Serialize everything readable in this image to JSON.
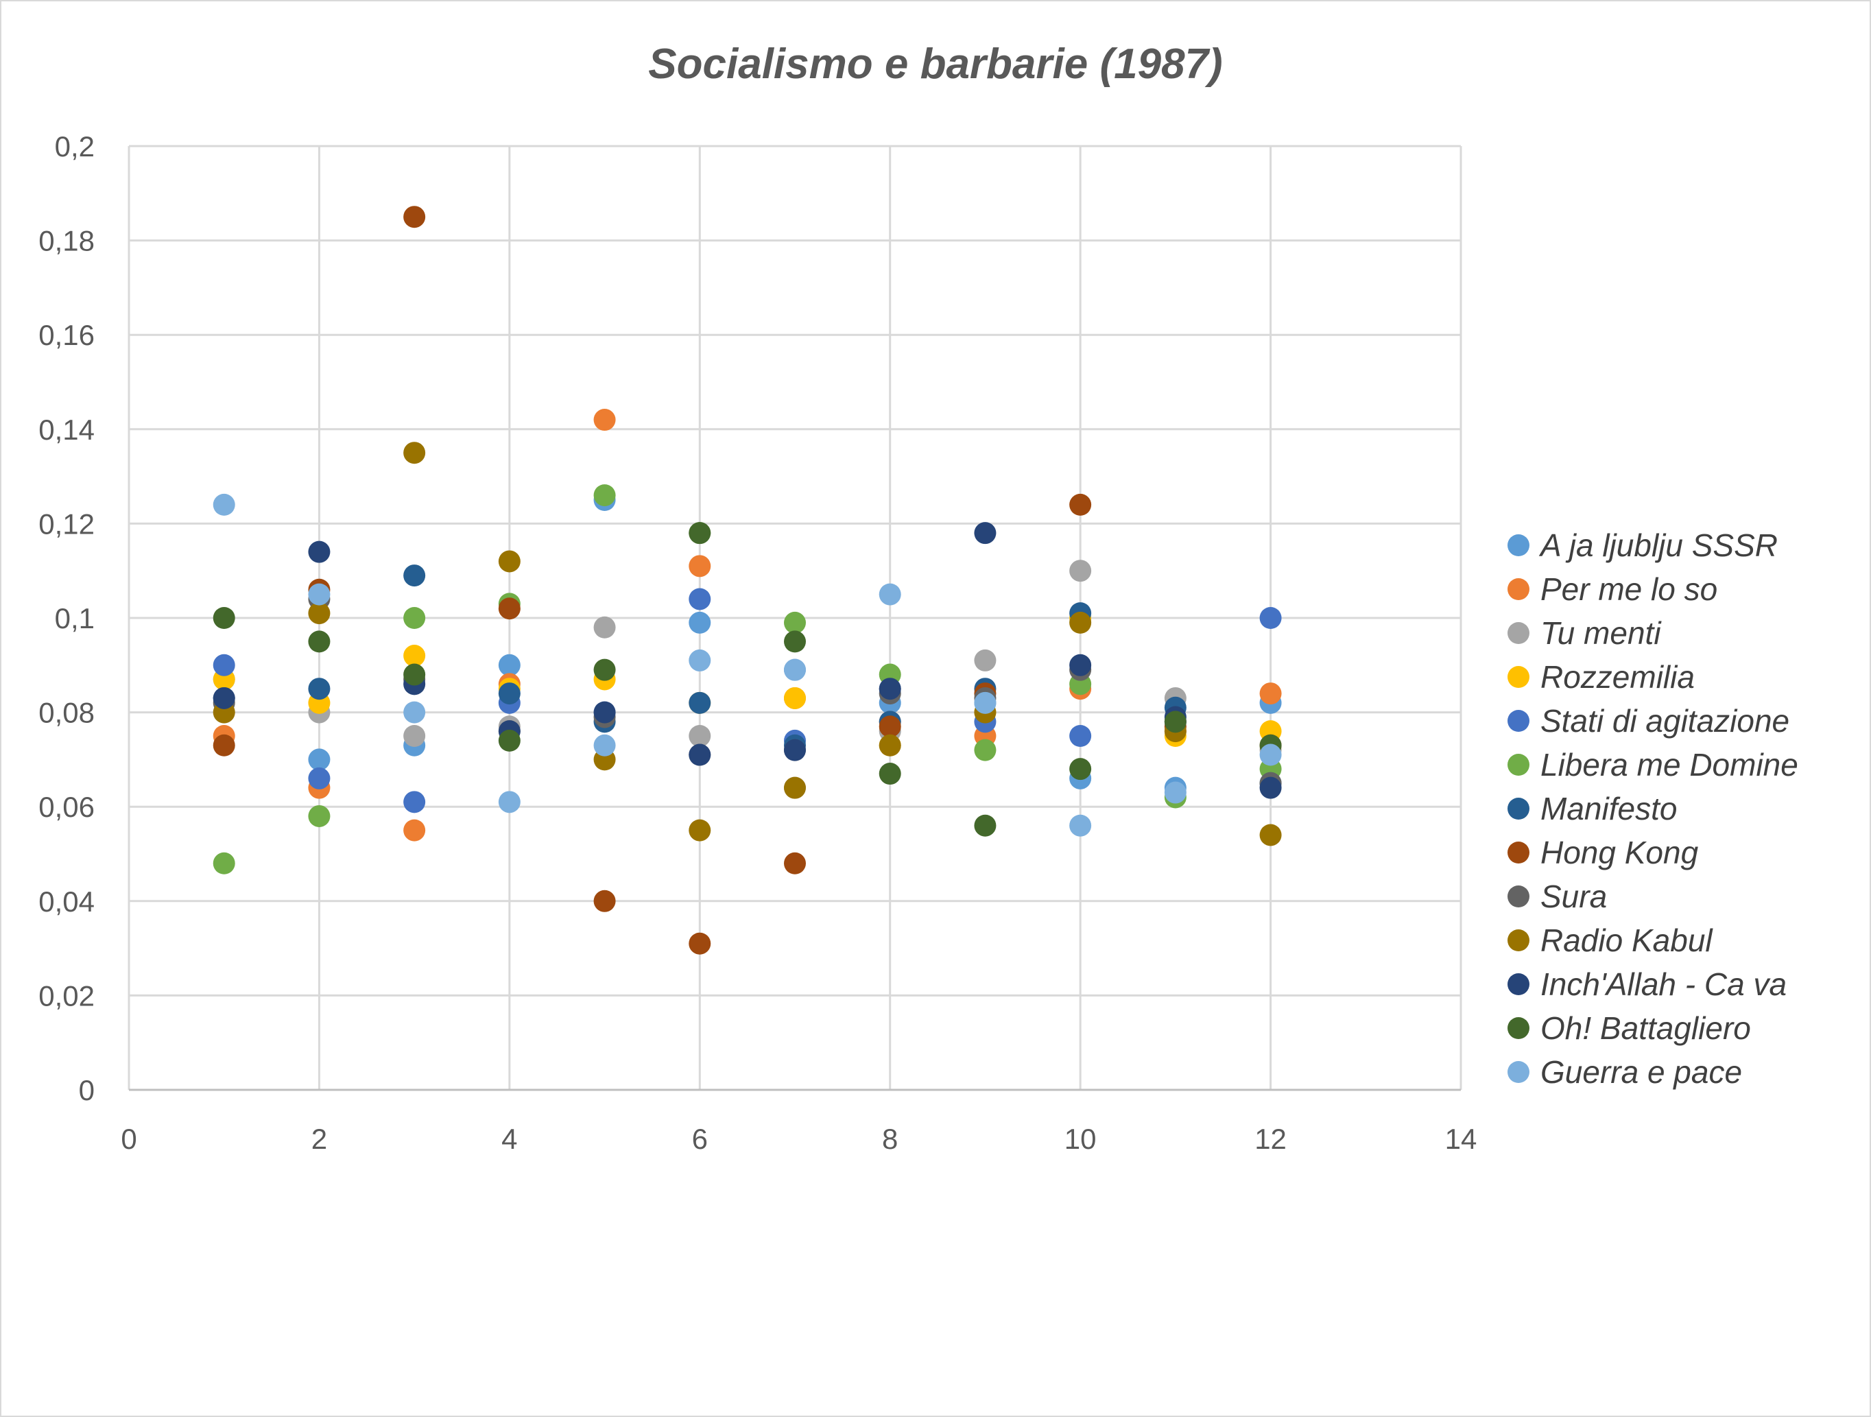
{
  "chart_data": {
    "type": "scatter",
    "title": "Socialismo e barbarie (1987)",
    "xlabel": "",
    "ylabel": "",
    "xlim": [
      0,
      14
    ],
    "ylim": [
      0,
      0.2
    ],
    "x_ticks": [
      "0",
      "2",
      "4",
      "6",
      "8",
      "10",
      "12",
      "14"
    ],
    "y_ticks": [
      "0",
      "0,02",
      "0,04",
      "0,06",
      "0,08",
      "0,1",
      "0,12",
      "0,14",
      "0,16",
      "0,18",
      "0,2"
    ],
    "grid": true,
    "legend_position": "right",
    "series": [
      {
        "name": "A ja ljublju SSSR",
        "color": "#5B9BD5",
        "points": [
          [
            1,
            0.087
          ],
          [
            2,
            0.07
          ],
          [
            3,
            0.073
          ],
          [
            4,
            0.09
          ],
          [
            5,
            0.125
          ],
          [
            6,
            0.099
          ],
          [
            7,
            0.089
          ],
          [
            8,
            0.082
          ],
          [
            9,
            0.082
          ],
          [
            10,
            0.066
          ],
          [
            11,
            0.064
          ],
          [
            12,
            0.082
          ]
        ]
      },
      {
        "name": "Per me lo so",
        "color": "#ED7D31",
        "points": [
          [
            1,
            0.075
          ],
          [
            2,
            0.064
          ],
          [
            3,
            0.055
          ],
          [
            4,
            0.086
          ],
          [
            5,
            0.142
          ],
          [
            6,
            0.111
          ],
          [
            7,
            0.083
          ],
          [
            8,
            0.078
          ],
          [
            9,
            0.075
          ],
          [
            10,
            0.085
          ],
          [
            11,
            0.076
          ],
          [
            12,
            0.084
          ]
        ]
      },
      {
        "name": "Tu menti",
        "color": "#A5A5A5",
        "points": [
          [
            1,
            0.08
          ],
          [
            2,
            0.08
          ],
          [
            3,
            0.075
          ],
          [
            4,
            0.077
          ],
          [
            5,
            0.098
          ],
          [
            6,
            0.075
          ],
          [
            7,
            0.064
          ],
          [
            8,
            0.076
          ],
          [
            9,
            0.091
          ],
          [
            10,
            0.11
          ],
          [
            11,
            0.083
          ],
          [
            12,
            0.072
          ]
        ]
      },
      {
        "name": "Rozzemilia",
        "color": "#FFC000",
        "points": [
          [
            1,
            0.087
          ],
          [
            2,
            0.082
          ],
          [
            3,
            0.092
          ],
          [
            4,
            0.085
          ],
          [
            5,
            0.087
          ],
          [
            6,
            0.082
          ],
          [
            7,
            0.083
          ],
          [
            8,
            0.073
          ],
          [
            9,
            0.08
          ],
          [
            10,
            0.1
          ],
          [
            11,
            0.075
          ],
          [
            12,
            0.076
          ]
        ]
      },
      {
        "name": "Stati di agitazione",
        "color": "#4472C4",
        "points": [
          [
            1,
            0.09
          ],
          [
            2,
            0.066
          ],
          [
            3,
            0.061
          ],
          [
            4,
            0.082
          ],
          [
            5,
            0.08
          ],
          [
            6,
            0.104
          ],
          [
            7,
            0.074
          ],
          [
            8,
            0.085
          ],
          [
            9,
            0.078
          ],
          [
            10,
            0.075
          ],
          [
            11,
            0.078
          ],
          [
            12,
            0.1
          ]
        ]
      },
      {
        "name": "Libera me Domine",
        "color": "#70AD47",
        "points": [
          [
            1,
            0.048
          ],
          [
            2,
            0.058
          ],
          [
            3,
            0.1
          ],
          [
            4,
            0.103
          ],
          [
            5,
            0.126
          ],
          [
            6,
            0.118
          ],
          [
            7,
            0.099
          ],
          [
            8,
            0.088
          ],
          [
            9,
            0.072
          ],
          [
            10,
            0.086
          ],
          [
            11,
            0.062
          ],
          [
            12,
            0.068
          ]
        ]
      },
      {
        "name": "Manifesto",
        "color": "#255E91",
        "points": [
          [
            1,
            0.083
          ],
          [
            2,
            0.085
          ],
          [
            3,
            0.109
          ],
          [
            4,
            0.084
          ],
          [
            5,
            0.078
          ],
          [
            6,
            0.082
          ],
          [
            7,
            0.073
          ],
          [
            8,
            0.078
          ],
          [
            9,
            0.085
          ],
          [
            10,
            0.101
          ],
          [
            11,
            0.081
          ],
          [
            12,
            0.065
          ]
        ]
      },
      {
        "name": "Hong Kong",
        "color": "#9E480E",
        "points": [
          [
            1,
            0.073
          ],
          [
            2,
            0.106
          ],
          [
            3,
            0.185
          ],
          [
            4,
            0.102
          ],
          [
            5,
            0.04
          ],
          [
            6,
            0.031
          ],
          [
            7,
            0.048
          ],
          [
            8,
            0.077
          ],
          [
            9,
            0.084
          ],
          [
            10,
            0.124
          ],
          [
            11,
            0.077
          ],
          [
            12,
            0.073
          ]
        ]
      },
      {
        "name": "Sura",
        "color": "#636363",
        "points": [
          [
            1,
            0.082
          ],
          [
            2,
            0.104
          ],
          [
            3,
            0.087
          ],
          [
            4,
            0.076
          ],
          [
            5,
            0.079
          ],
          [
            6,
            0.071
          ],
          [
            7,
            0.072
          ],
          [
            8,
            0.084
          ],
          [
            9,
            0.083
          ],
          [
            10,
            0.089
          ],
          [
            11,
            0.078
          ],
          [
            12,
            0.065
          ]
        ]
      },
      {
        "name": "Radio Kabul",
        "color": "#997300",
        "points": [
          [
            1,
            0.08
          ],
          [
            2,
            0.101
          ],
          [
            3,
            0.135
          ],
          [
            4,
            0.112
          ],
          [
            5,
            0.07
          ],
          [
            6,
            0.055
          ],
          [
            7,
            0.064
          ],
          [
            8,
            0.073
          ],
          [
            9,
            0.08
          ],
          [
            10,
            0.099
          ],
          [
            11,
            0.076
          ],
          [
            12,
            0.054
          ]
        ]
      },
      {
        "name": "Inch'Allah - Ca va",
        "color": "#264478",
        "points": [
          [
            1,
            0.083
          ],
          [
            2,
            0.114
          ],
          [
            3,
            0.086
          ],
          [
            4,
            0.076
          ],
          [
            5,
            0.08
          ],
          [
            6,
            0.071
          ],
          [
            7,
            0.072
          ],
          [
            8,
            0.085
          ],
          [
            9,
            0.118
          ],
          [
            10,
            0.09
          ],
          [
            11,
            0.079
          ],
          [
            12,
            0.064
          ]
        ]
      },
      {
        "name": "Oh! Battagliero",
        "color": "#43682B",
        "points": [
          [
            1,
            0.1
          ],
          [
            2,
            0.095
          ],
          [
            3,
            0.088
          ],
          [
            4,
            0.074
          ],
          [
            5,
            0.089
          ],
          [
            6,
            0.118
          ],
          [
            7,
            0.095
          ],
          [
            8,
            0.067
          ],
          [
            9,
            0.056
          ],
          [
            10,
            0.068
          ],
          [
            11,
            0.078
          ],
          [
            12,
            0.073
          ]
        ]
      },
      {
        "name": "Guerra e pace",
        "color": "#7CAFDD",
        "points": [
          [
            1,
            0.124
          ],
          [
            2,
            0.105
          ],
          [
            3,
            0.08
          ],
          [
            4,
            0.061
          ],
          [
            5,
            0.073
          ],
          [
            6,
            0.091
          ],
          [
            7,
            0.089
          ],
          [
            8,
            0.105
          ],
          [
            9,
            0.082
          ],
          [
            10,
            0.056
          ],
          [
            11,
            0.063
          ],
          [
            12,
            0.071
          ]
        ]
      }
    ]
  }
}
